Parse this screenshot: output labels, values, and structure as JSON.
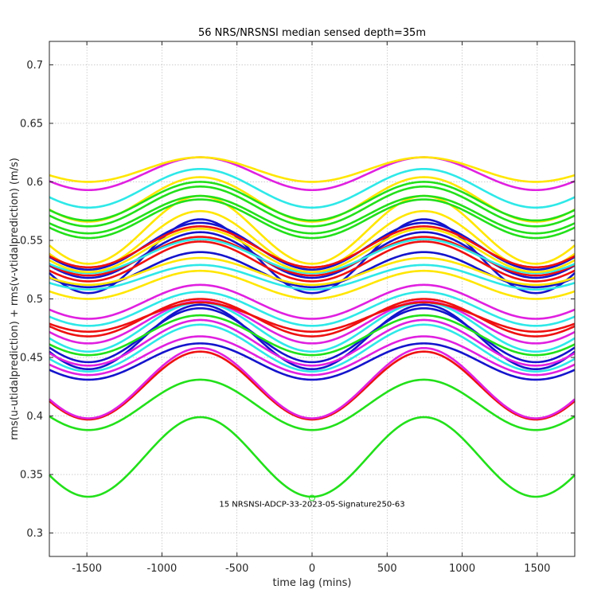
{
  "chart_data": {
    "type": "line",
    "title": "56 NRS/NRSNSI median sensed depth=35m",
    "xlabel": "time lag (mins)",
    "ylabel": "rms(u-utidalprediction) + rms(v-vtidalprediction) (m/s)",
    "xlim": [
      -1750,
      1750
    ],
    "ylim": [
      0.28,
      0.72
    ],
    "xticks": [
      -1500,
      -1000,
      -500,
      0,
      500,
      1000,
      1500
    ],
    "xtick_labels": [
      "-1500",
      "-1000",
      "-500",
      "0",
      "500",
      "1000",
      "1500"
    ],
    "yticks": [
      0.3,
      0.35,
      0.4,
      0.45,
      0.5,
      0.55,
      0.6,
      0.65,
      0.7
    ],
    "ytick_labels": [
      "0.3",
      "0.35",
      "0.4",
      "0.45",
      "0.5",
      "0.55",
      "0.6",
      "0.65",
      "0.7"
    ],
    "grid": true,
    "annotation": {
      "text": "15 NRSNSI-ADCP-33-2023-05-Signature250-63",
      "marker_x": 0,
      "marker_y": 0.33
    },
    "colors": {
      "green": "#22e01a",
      "yellow": "#ffe600",
      "magenta": "#e020e0",
      "cyan": "#2ee8e8",
      "red": "#ee1111",
      "blue": "#1414cc",
      "grid": "#b0b0b0",
      "axis": "#262626"
    },
    "series": [
      {
        "name": "green-1",
        "color": "green",
        "min": 0.331,
        "max": 0.399
      },
      {
        "name": "green-2",
        "color": "green",
        "min": 0.388,
        "max": 0.431
      },
      {
        "name": "red-1",
        "color": "red",
        "min": 0.397,
        "max": 0.455
      },
      {
        "name": "magenta-1",
        "color": "magenta",
        "min": 0.398,
        "max": 0.458
      },
      {
        "name": "blue-1",
        "color": "blue",
        "min": 0.431,
        "max": 0.462
      },
      {
        "name": "magenta-2",
        "color": "magenta",
        "min": 0.435,
        "max": 0.468
      },
      {
        "name": "cyan-1",
        "color": "cyan",
        "min": 0.438,
        "max": 0.478
      },
      {
        "name": "blue-2",
        "color": "blue",
        "min": 0.44,
        "max": 0.495
      },
      {
        "name": "magenta-3",
        "color": "magenta",
        "min": 0.443,
        "max": 0.482
      },
      {
        "name": "blue-3",
        "color": "blue",
        "min": 0.446,
        "max": 0.492
      },
      {
        "name": "green-3",
        "color": "green",
        "min": 0.452,
        "max": 0.486
      },
      {
        "name": "cyan-2",
        "color": "cyan",
        "min": 0.455,
        "max": 0.497
      },
      {
        "name": "magenta-4",
        "color": "magenta",
        "min": 0.462,
        "max": 0.498
      },
      {
        "name": "red-2",
        "color": "red",
        "min": 0.468,
        "max": 0.5
      },
      {
        "name": "red-3",
        "color": "red",
        "min": 0.472,
        "max": 0.497
      },
      {
        "name": "cyan-3",
        "color": "cyan",
        "min": 0.477,
        "max": 0.506
      },
      {
        "name": "magenta-5",
        "color": "magenta",
        "min": 0.483,
        "max": 0.512
      },
      {
        "name": "yellow-1",
        "color": "yellow",
        "min": 0.5,
        "max": 0.524
      },
      {
        "name": "blue-4",
        "color": "blue",
        "min": 0.505,
        "max": 0.568
      },
      {
        "name": "cyan-4",
        "color": "cyan",
        "min": 0.508,
        "max": 0.529
      },
      {
        "name": "blue-5",
        "color": "blue",
        "min": 0.51,
        "max": 0.54
      },
      {
        "name": "yellow-2",
        "color": "yellow",
        "min": 0.512,
        "max": 0.535
      },
      {
        "name": "red-4",
        "color": "red",
        "min": 0.515,
        "max": 0.549
      },
      {
        "name": "blue-6",
        "color": "blue",
        "min": 0.518,
        "max": 0.557
      },
      {
        "name": "red-5",
        "color": "red",
        "min": 0.52,
        "max": 0.553
      },
      {
        "name": "cyan-5",
        "color": "cyan",
        "min": 0.522,
        "max": 0.551
      },
      {
        "name": "yellow-3",
        "color": "yellow",
        "min": 0.523,
        "max": 0.56
      },
      {
        "name": "yellow-4",
        "color": "yellow",
        "min": 0.525,
        "max": 0.575
      },
      {
        "name": "blue-7",
        "color": "blue",
        "min": 0.525,
        "max": 0.565
      },
      {
        "name": "red-6",
        "color": "red",
        "min": 0.527,
        "max": 0.562
      },
      {
        "name": "yellow-5",
        "color": "yellow",
        "min": 0.53,
        "max": 0.588
      },
      {
        "name": "green-4",
        "color": "green",
        "min": 0.552,
        "max": 0.585
      },
      {
        "name": "green-5",
        "color": "green",
        "min": 0.556,
        "max": 0.588
      },
      {
        "name": "green-6",
        "color": "green",
        "min": 0.562,
        "max": 0.596
      },
      {
        "name": "yellow-6",
        "color": "yellow",
        "min": 0.566,
        "max": 0.604
      },
      {
        "name": "green-7",
        "color": "green",
        "min": 0.567,
        "max": 0.6
      },
      {
        "name": "cyan-6",
        "color": "cyan",
        "min": 0.578,
        "max": 0.611
      },
      {
        "name": "magenta-6",
        "color": "magenta",
        "min": 0.593,
        "max": 0.621
      },
      {
        "name": "yellow-7",
        "color": "yellow",
        "min": 0.6,
        "max": 0.621
      }
    ]
  }
}
